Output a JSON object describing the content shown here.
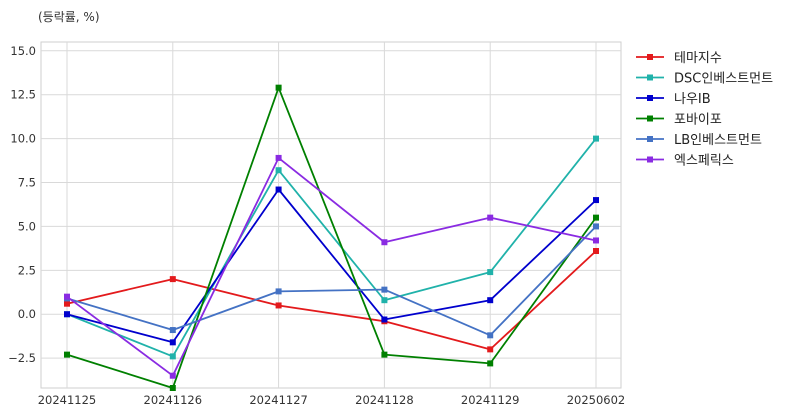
{
  "chart_data": {
    "type": "line",
    "unit_label": "(등락률, %)",
    "categories": [
      "20241125",
      "20241126",
      "20241127",
      "20241128",
      "20241129",
      "20250602"
    ],
    "ylim": [
      -4.2,
      15.5
    ],
    "yticks": [
      -2.5,
      0.0,
      2.5,
      5.0,
      7.5,
      10.0,
      12.5,
      15.0
    ],
    "ytick_labels": [
      "−2.5",
      "0.0",
      "2.5",
      "5.0",
      "7.5",
      "10.0",
      "12.5",
      "15.0"
    ],
    "grid": true,
    "legend_position": "right",
    "series": [
      {
        "name": "테마지수",
        "color": "#e31a1c",
        "values": [
          0.6,
          2.0,
          0.5,
          -0.4,
          -2.0,
          3.6
        ]
      },
      {
        "name": "DSC인베스트먼트",
        "color": "#20b2aa",
        "values": [
          0.0,
          -2.4,
          8.2,
          0.8,
          2.4,
          10.0
        ]
      },
      {
        "name": "나우IB",
        "color": "#0000cd",
        "values": [
          0.0,
          -1.6,
          7.1,
          -0.3,
          0.8,
          6.5
        ]
      },
      {
        "name": "포바이포",
        "color": "#008000",
        "values": [
          -2.3,
          -4.2,
          12.9,
          -2.3,
          -2.8,
          5.5
        ]
      },
      {
        "name": "LB인베스트먼트",
        "color": "#4472c4",
        "values": [
          0.9,
          -0.9,
          1.3,
          1.4,
          -1.2,
          5.0
        ]
      },
      {
        "name": "엑스페릭스",
        "color": "#8a2be2",
        "values": [
          1.0,
          -3.5,
          8.9,
          4.1,
          5.5,
          4.2
        ]
      }
    ]
  }
}
